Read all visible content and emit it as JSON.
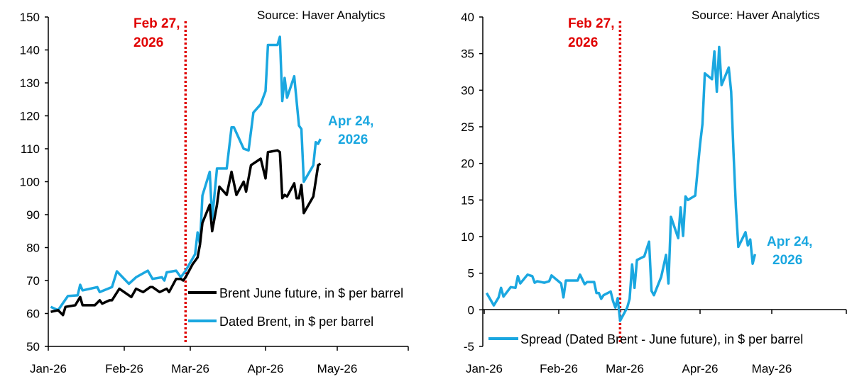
{
  "chart_data": [
    {
      "type": "line",
      "source": "Source: Haver Analytics",
      "x_ticks": [
        "Jan-26",
        "Feb-26",
        "Mar-26",
        "Apr-26",
        "May-26"
      ],
      "y_ticks": [
        50,
        60,
        70,
        80,
        90,
        100,
        110,
        120,
        130,
        140,
        150
      ],
      "ylim": [
        50,
        150
      ],
      "xlim": [
        "2026-01-01",
        "2026-06-01"
      ],
      "grid": false,
      "legend_position": "bottom-right",
      "event_line": {
        "date": "2026-02-27",
        "label_line1": "Feb 27,",
        "label_line2": "2026",
        "color": "#e00000"
      },
      "end_annotation": {
        "label_line1": "Apr 24,",
        "label_line2": "2026",
        "color": "#1aa7e0"
      },
      "series": [
        {
          "name": "Brent June future, in $ per barrel",
          "color": "#000000",
          "points": [
            [
              "2026-01-02",
              60.5
            ],
            [
              "2026-01-05",
              61
            ],
            [
              "2026-01-07",
              59.5
            ],
            [
              "2026-01-08",
              62
            ],
            [
              "2026-01-12",
              62.5
            ],
            [
              "2026-01-14",
              65
            ],
            [
              "2026-01-15",
              62.5
            ],
            [
              "2026-01-20",
              62.5
            ],
            [
              "2026-01-22",
              64
            ],
            [
              "2026-01-23",
              63
            ],
            [
              "2026-01-26",
              64
            ],
            [
              "2026-01-27",
              64
            ],
            [
              "2026-01-30",
              67.5
            ],
            [
              "2026-02-04",
              65
            ],
            [
              "2026-02-06",
              67.5
            ],
            [
              "2026-02-09",
              66.5
            ],
            [
              "2026-02-12",
              68
            ],
            [
              "2026-02-13",
              68
            ],
            [
              "2026-02-16",
              66.5
            ],
            [
              "2026-02-19",
              67.5
            ],
            [
              "2026-02-20",
              66.5
            ],
            [
              "2026-02-23",
              70.5
            ],
            [
              "2026-02-25",
              70.5
            ],
            [
              "2026-02-26",
              70
            ],
            [
              "2026-02-27",
              71
            ],
            [
              "2026-03-02",
              75
            ],
            [
              "2026-03-04",
              77
            ],
            [
              "2026-03-05",
              81
            ],
            [
              "2026-03-06",
              87.5
            ],
            [
              "2026-03-09",
              93
            ],
            [
              "2026-03-10",
              85
            ],
            [
              "2026-03-12",
              93
            ],
            [
              "2026-03-13",
              98.5
            ],
            [
              "2026-03-16",
              96
            ],
            [
              "2026-03-18",
              103
            ],
            [
              "2026-03-20",
              96
            ],
            [
              "2026-03-23",
              100
            ],
            [
              "2026-03-24",
              97
            ],
            [
              "2026-03-26",
              105
            ],
            [
              "2026-03-30",
              107
            ],
            [
              "2026-04-01",
              101
            ],
            [
              "2026-04-02",
              109
            ],
            [
              "2026-04-06",
              109.5
            ],
            [
              "2026-04-07",
              109
            ],
            [
              "2026-04-08",
              95
            ],
            [
              "2026-04-09",
              96
            ],
            [
              "2026-04-10",
              95.5
            ],
            [
              "2026-04-13",
              99.5
            ],
            [
              "2026-04-14",
              95
            ],
            [
              "2026-04-15",
              95
            ],
            [
              "2026-04-16",
              99
            ],
            [
              "2026-04-17",
              90.5
            ],
            [
              "2026-04-21",
              95.5
            ],
            [
              "2026-04-23",
              105
            ],
            [
              "2026-04-24",
              105.5
            ]
          ]
        },
        {
          "name": "Dated Brent, in $ per barrel",
          "color": "#1aa7e0",
          "points": [
            [
              "2026-01-02",
              62
            ],
            [
              "2026-01-05",
              61
            ],
            [
              "2026-01-09",
              65.3
            ],
            [
              "2026-01-13",
              65.5
            ],
            [
              "2026-01-14",
              68.7
            ],
            [
              "2026-01-15",
              67
            ],
            [
              "2026-01-21",
              68
            ],
            [
              "2026-01-22",
              66.5
            ],
            [
              "2026-01-27",
              68
            ],
            [
              "2026-01-29",
              72.8
            ],
            [
              "2026-02-03",
              69
            ],
            [
              "2026-02-06",
              71
            ],
            [
              "2026-02-11",
              73
            ],
            [
              "2026-02-13",
              70.5
            ],
            [
              "2026-02-17",
              71
            ],
            [
              "2026-02-18",
              70
            ],
            [
              "2026-02-19",
              72.5
            ],
            [
              "2026-02-23",
              73
            ],
            [
              "2026-02-25",
              71
            ],
            [
              "2026-02-27",
              73
            ],
            [
              "2026-03-03",
              78
            ],
            [
              "2026-03-04",
              84.6
            ],
            [
              "2026-03-05",
              81
            ],
            [
              "2026-03-06",
              95.8
            ],
            [
              "2026-03-09",
              103
            ],
            [
              "2026-03-10",
              88.6
            ],
            [
              "2026-03-12",
              104
            ],
            [
              "2026-03-16",
              104
            ],
            [
              "2026-03-18",
              116.5
            ],
            [
              "2026-03-19",
              116.5
            ],
            [
              "2026-03-23",
              110
            ],
            [
              "2026-03-25",
              109.5
            ],
            [
              "2026-03-27",
              121
            ],
            [
              "2026-03-30",
              123.5
            ],
            [
              "2026-04-01",
              127.5
            ],
            [
              "2026-04-02",
              141.5
            ],
            [
              "2026-04-06",
              141.5
            ],
            [
              "2026-04-07",
              144
            ],
            [
              "2026-04-08",
              124.5
            ],
            [
              "2026-04-09",
              131.5
            ],
            [
              "2026-04-10",
              125.5
            ],
            [
              "2026-04-13",
              132
            ],
            [
              "2026-04-15",
              117
            ],
            [
              "2026-04-16",
              116
            ],
            [
              "2026-04-17",
              100
            ],
            [
              "2026-04-21",
              105
            ],
            [
              "2026-04-22",
              112
            ],
            [
              "2026-04-23",
              111.5
            ],
            [
              "2026-04-24",
              113
            ]
          ]
        }
      ]
    },
    {
      "type": "line",
      "source": "Source: Haver Analytics",
      "x_ticks": [
        "Jan-26",
        "Feb-26",
        "Mar-26",
        "Apr-26",
        "May-26"
      ],
      "y_ticks": [
        -5,
        0,
        5,
        10,
        15,
        20,
        25,
        30,
        35,
        40
      ],
      "ylim": [
        -5,
        40
      ],
      "xlim": [
        "2026-01-01",
        "2026-06-01"
      ],
      "grid": false,
      "legend_position": "bottom",
      "event_line": {
        "date": "2026-02-27",
        "label_line1": "Feb 27,",
        "label_line2": "2026",
        "color": "#e00000"
      },
      "end_annotation": {
        "label_line1": "Apr 24,",
        "label_line2": "2026",
        "color": "#1aa7e0"
      },
      "series": [
        {
          "name": "Spread (Dated Brent - June future), in $ per barrel",
          "color": "#1aa7e0",
          "points": [
            [
              "2026-01-02",
              2.3
            ],
            [
              "2026-01-05",
              0.6
            ],
            [
              "2026-01-07",
              1.7
            ],
            [
              "2026-01-08",
              3.0
            ],
            [
              "2026-01-09",
              1.8
            ],
            [
              "2026-01-12",
              3.1
            ],
            [
              "2026-01-14",
              3.0
            ],
            [
              "2026-01-15",
              4.6
            ],
            [
              "2026-01-16",
              3.6
            ],
            [
              "2026-01-19",
              4.8
            ],
            [
              "2026-01-21",
              4.6
            ],
            [
              "2026-01-22",
              3.7
            ],
            [
              "2026-01-23",
              3.9
            ],
            [
              "2026-01-26",
              3.7
            ],
            [
              "2026-01-28",
              3.9
            ],
            [
              "2026-01-29",
              4.7
            ],
            [
              "2026-02-02",
              3.6
            ],
            [
              "2026-02-03",
              1.7
            ],
            [
              "2026-02-04",
              4.0
            ],
            [
              "2026-02-06",
              4.0
            ],
            [
              "2026-02-09",
              4.0
            ],
            [
              "2026-02-10",
              4.8
            ],
            [
              "2026-02-12",
              3.5
            ],
            [
              "2026-02-13",
              3.8
            ],
            [
              "2026-02-16",
              3.8
            ],
            [
              "2026-02-17",
              2.3
            ],
            [
              "2026-02-18",
              2.3
            ],
            [
              "2026-02-19",
              1.5
            ],
            [
              "2026-02-20",
              2.0
            ],
            [
              "2026-02-23",
              2.5
            ],
            [
              "2026-02-24",
              1.2
            ],
            [
              "2026-02-25",
              0.3
            ],
            [
              "2026-02-26",
              1.6
            ],
            [
              "2026-02-27",
              -1.5
            ],
            [
              "2026-03-02",
              0.3
            ],
            [
              "2026-03-03",
              1.5
            ],
            [
              "2026-03-04",
              6.2
            ],
            [
              "2026-03-05",
              3.0
            ],
            [
              "2026-03-06",
              6.8
            ],
            [
              "2026-03-09",
              7.3
            ],
            [
              "2026-03-11",
              9.3
            ],
            [
              "2026-03-12",
              2.6
            ],
            [
              "2026-03-13",
              2.0
            ],
            [
              "2026-03-16",
              4.5
            ],
            [
              "2026-03-18",
              7.5
            ],
            [
              "2026-03-19",
              3.6
            ],
            [
              "2026-03-20",
              12.7
            ],
            [
              "2026-03-23",
              9.8
            ],
            [
              "2026-03-24",
              14
            ],
            [
              "2026-03-25",
              10.1
            ],
            [
              "2026-03-26",
              15.5
            ],
            [
              "2026-03-27",
              15.0
            ],
            [
              "2026-03-30",
              15.6
            ],
            [
              "2026-04-01",
              22.6
            ],
            [
              "2026-04-02",
              25.4
            ],
            [
              "2026-04-03",
              32.3
            ],
            [
              "2026-04-06",
              31.5
            ],
            [
              "2026-04-07",
              35.3
            ],
            [
              "2026-04-08",
              29.8
            ],
            [
              "2026-04-09",
              35.9
            ],
            [
              "2026-04-10",
              30.7
            ],
            [
              "2026-04-13",
              33.1
            ],
            [
              "2026-04-14",
              29.8
            ],
            [
              "2026-04-15",
              21.5
            ],
            [
              "2026-04-16",
              14
            ],
            [
              "2026-04-17",
              8.6
            ],
            [
              "2026-04-20",
              10.6
            ],
            [
              "2026-04-21",
              8.8
            ],
            [
              "2026-04-22",
              9.6
            ],
            [
              "2026-04-23",
              6.3
            ],
            [
              "2026-04-24",
              7.6
            ]
          ]
        }
      ]
    }
  ]
}
